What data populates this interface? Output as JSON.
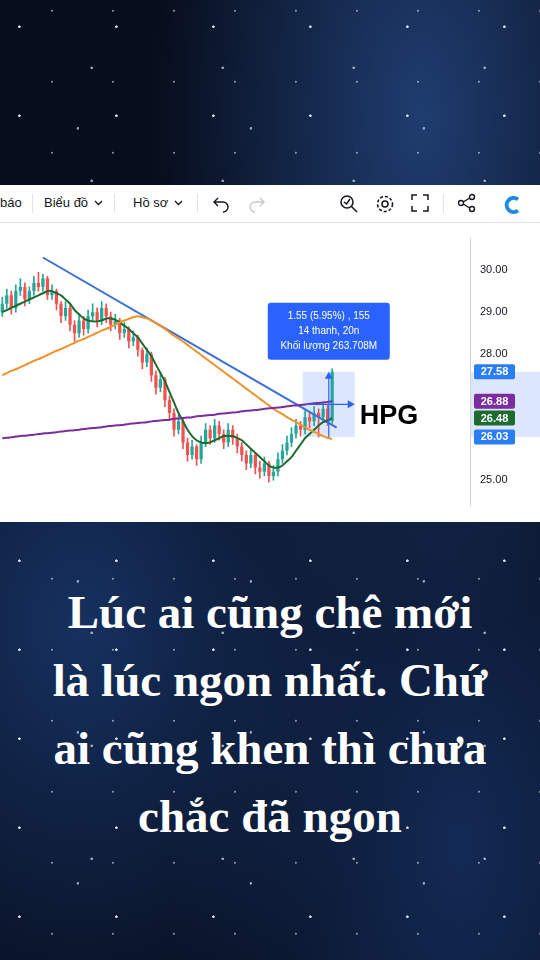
{
  "toolbar": {
    "items": [
      "báo",
      "Biểu đồ",
      "Hồ sơ"
    ]
  },
  "chart_data": {
    "type": "candlestick",
    "categories": [
      null,
      null,
      null,
      null,
      null,
      null,
      null,
      null,
      null,
      null,
      null,
      null,
      null,
      null,
      null,
      null,
      null,
      null,
      null,
      null,
      null,
      null,
      null,
      null,
      null,
      null,
      null,
      null,
      null,
      null,
      null,
      null,
      null,
      null,
      null,
      null,
      null,
      null,
      null,
      null,
      null,
      null,
      null,
      null,
      null,
      null,
      null,
      null,
      null,
      null,
      null,
      null,
      null,
      null,
      null,
      null,
      null,
      null,
      null,
      null,
      null,
      null,
      null,
      null,
      null,
      null,
      null,
      null,
      null,
      null,
      null,
      null,
      null,
      null,
      null,
      null,
      null,
      null,
      null,
      null,
      null,
      null,
      null,
      null,
      null,
      null,
      null,
      null,
      null,
      null,
      null,
      null,
      null,
      null,
      null,
      null,
      null,
      null,
      null,
      null,
      null,
      null,
      null,
      null
    ],
    "open": [
      29,
      29.2,
      29.4,
      29.1,
      29.5,
      29.6,
      29.3,
      29.5,
      29.7,
      29.6,
      29.8,
      29.4,
      29.5,
      29.2,
      28.9,
      29.1,
      28.7,
      28.5,
      28.8,
      28.6,
      28.9,
      29.0,
      28.8,
      29.1,
      28.9,
      28.7,
      28.8,
      28.5,
      28.6,
      28.3,
      28.4,
      28.1,
      27.8,
      28.0,
      27.5,
      27.2,
      27.4,
      26.9,
      26.6,
      26.2,
      26.4,
      25.9,
      25.6,
      25.8,
      25.5,
      25.9,
      26.2,
      26.0,
      26.3,
      26.1,
      25.9,
      26.2,
      26.0,
      25.8,
      25.6,
      25.4,
      25.6,
      25.3,
      25.2,
      25.4,
      25.1,
      25.2,
      25.5,
      25.7,
      25.9,
      26.1,
      26.3,
      26.2,
      26.5,
      26.4,
      26.6,
      26.5,
      26.7,
      26.4,
      null,
      null,
      null,
      null,
      null,
      null,
      null,
      null,
      null,
      null,
      null,
      null,
      null,
      null,
      null,
      null,
      null,
      null,
      null,
      null,
      null,
      null,
      null,
      null,
      null,
      null,
      null,
      null,
      null,
      null
    ],
    "high": [
      29.35,
      29.55,
      29.5,
      29.65,
      29.8,
      29.7,
      29.6,
      29.85,
      29.95,
      29.9,
      29.85,
      29.65,
      29.55,
      29.25,
      29.25,
      29.15,
      28.8,
      28.95,
      28.9,
      29.05,
      29.2,
      29.1,
      29.25,
      29.2,
      29.0,
      28.95,
      28.85,
      28.75,
      28.65,
      28.55,
      28.45,
      28.15,
      28.15,
      28.05,
      27.6,
      27.55,
      27.45,
      27.0,
      26.7,
      26.55,
      26.45,
      26.0,
      25.95,
      25.85,
      26.05,
      26.35,
      26.3,
      26.45,
      26.4,
      26.2,
      26.35,
      26.3,
      26.1,
      25.9,
      25.7,
      25.75,
      25.65,
      25.45,
      25.55,
      25.45,
      25.35,
      25.65,
      25.85,
      26.05,
      26.25,
      26.45,
      26.4,
      26.65,
      26.6,
      26.75,
      26.7,
      26.85,
      26.8,
      27.65,
      null,
      null,
      null,
      null,
      null,
      null,
      null,
      null,
      null,
      null,
      null,
      null,
      null,
      null,
      null,
      null,
      null,
      null,
      null,
      null,
      null,
      null,
      null,
      null,
      null,
      null,
      null,
      null,
      null,
      null
    ],
    "low": [
      28.9,
      29.1,
      28.95,
      29.0,
      29.4,
      29.15,
      29.2,
      29.4,
      29.5,
      29.5,
      29.3,
      29.3,
      29.05,
      28.75,
      28.8,
      28.55,
      28.3,
      28.4,
      28.45,
      28.5,
      28.8,
      28.65,
      28.7,
      28.75,
      28.55,
      28.6,
      28.35,
      28.4,
      28.15,
      28.2,
      27.95,
      27.65,
      27.7,
      27.35,
      27.05,
      27.1,
      26.75,
      26.45,
      26.05,
      26.1,
      25.75,
      25.45,
      25.5,
      25.35,
      25.4,
      25.8,
      25.85,
      25.9,
      25.95,
      25.75,
      25.8,
      25.85,
      25.65,
      25.45,
      25.25,
      25.3,
      25.15,
      25.05,
      25.1,
      24.95,
      25.0,
      25.1,
      25.4,
      25.6,
      25.8,
      26.0,
      26.05,
      26.1,
      26.25,
      26.3,
      26.03,
      26.4,
      26.3,
      26.35,
      null,
      null,
      null,
      null,
      null,
      null,
      null,
      null,
      null,
      null,
      null,
      null,
      null,
      null,
      null,
      null,
      null,
      null,
      null,
      null,
      null,
      null,
      null,
      null,
      null,
      null,
      null,
      null,
      null,
      null
    ],
    "close": [
      29.2,
      29.4,
      29.1,
      29.5,
      29.6,
      29.3,
      29.5,
      29.7,
      29.6,
      29.8,
      29.4,
      29.5,
      29.2,
      28.9,
      29.1,
      28.7,
      28.5,
      28.8,
      28.6,
      28.9,
      29.0,
      28.8,
      29.1,
      28.9,
      28.7,
      28.8,
      28.5,
      28.6,
      28.3,
      28.4,
      28.1,
      27.8,
      28.0,
      27.5,
      27.2,
      27.4,
      26.9,
      26.6,
      26.2,
      26.4,
      25.9,
      25.6,
      25.8,
      25.5,
      25.9,
      26.2,
      26.0,
      26.3,
      26.1,
      25.9,
      26.2,
      26.0,
      25.8,
      25.6,
      25.4,
      25.6,
      25.3,
      25.2,
      25.4,
      25.1,
      25.2,
      25.5,
      25.7,
      25.9,
      26.1,
      26.3,
      26.2,
      26.5,
      26.4,
      26.6,
      26.5,
      26.7,
      26.4,
      27.58,
      null,
      null,
      null,
      null,
      null,
      null,
      null,
      null,
      null,
      null,
      null,
      null,
      null,
      null,
      null,
      null,
      null,
      null,
      null,
      null,
      null,
      null,
      null,
      null,
      null,
      null,
      null,
      null,
      null,
      null
    ],
    "series": [
      {
        "type": "line",
        "color": "#7b2c9e",
        "values": [
          26.0,
          26.01,
          26.02,
          26.04,
          26.05,
          26.06,
          26.07,
          26.08,
          26.1,
          26.11,
          26.12,
          26.13,
          26.14,
          26.16,
          26.17,
          26.18,
          26.19,
          26.2,
          26.22,
          26.23,
          26.24,
          26.25,
          26.26,
          26.28,
          26.29,
          26.3,
          26.31,
          26.32,
          26.34,
          26.35,
          26.36,
          26.37,
          26.38,
          26.4,
          26.41,
          26.42,
          26.43,
          26.44,
          26.46,
          26.47,
          26.48,
          26.49,
          26.5,
          26.52,
          26.53,
          26.54,
          26.55,
          26.56,
          26.58,
          26.59,
          26.6,
          26.61,
          26.62,
          26.64,
          26.65,
          26.66,
          26.67,
          26.68,
          26.7,
          26.71,
          26.72,
          26.73,
          26.74,
          26.76,
          26.77,
          26.78,
          26.79,
          26.8,
          26.82,
          26.83,
          26.84,
          26.85,
          26.86,
          26.88,
          null,
          null,
          null,
          null,
          null,
          null,
          null,
          null,
          null,
          null,
          null,
          null,
          null,
          null,
          null,
          null,
          null,
          null,
          null,
          null,
          null,
          null,
          null,
          null,
          null,
          null,
          null,
          null,
          null,
          null
        ]
      },
      {
        "type": "line",
        "color": "#f0922b",
        "values": [
          27.5,
          27.55,
          27.6,
          27.64,
          27.69,
          27.74,
          27.79,
          27.84,
          27.88,
          27.93,
          27.98,
          28.03,
          28.08,
          28.12,
          28.17,
          28.22,
          28.27,
          28.32,
          28.36,
          28.41,
          28.46,
          28.51,
          28.56,
          28.6,
          28.65,
          28.7,
          28.75,
          28.8,
          28.84,
          28.88,
          28.9,
          28.88,
          28.85,
          28.8,
          28.74,
          28.67,
          28.6,
          28.52,
          28.44,
          28.37,
          28.3,
          28.22,
          28.14,
          28.06,
          27.98,
          27.9,
          27.82,
          27.74,
          27.66,
          27.58,
          27.5,
          27.42,
          27.34,
          27.26,
          27.18,
          27.1,
          27.02,
          26.94,
          26.86,
          26.78,
          26.7,
          26.63,
          26.57,
          26.5,
          26.44,
          26.38,
          26.32,
          26.26,
          26.2,
          26.15,
          26.1,
          26.05,
          26.01,
          25.98,
          null,
          null,
          null,
          null,
          null,
          null,
          null,
          null,
          null,
          null,
          null,
          null,
          null,
          null,
          null,
          null,
          null,
          null,
          null,
          null,
          null,
          null,
          null,
          null,
          null,
          null,
          null,
          null,
          null,
          null
        ]
      },
      {
        "type": "line",
        "color": "#1e6b2e",
        "values": [
          29.0,
          29.05,
          29.1,
          29.15,
          29.2,
          29.25,
          29.3,
          29.35,
          29.4,
          29.45,
          29.5,
          29.5,
          29.45,
          29.4,
          29.3,
          29.2,
          29.05,
          28.95,
          28.85,
          28.8,
          28.78,
          28.78,
          28.8,
          28.85,
          28.85,
          28.82,
          28.75,
          28.68,
          28.6,
          28.5,
          28.4,
          28.25,
          28.1,
          27.95,
          27.75,
          27.55,
          27.35,
          27.1,
          26.85,
          26.6,
          26.4,
          26.2,
          26.05,
          25.95,
          25.9,
          25.88,
          25.9,
          25.95,
          26.0,
          26.05,
          26.05,
          26.05,
          26.0,
          25.95,
          25.85,
          25.75,
          25.65,
          25.55,
          25.45,
          25.35,
          25.3,
          25.3,
          25.35,
          25.45,
          25.55,
          25.7,
          25.85,
          26.0,
          26.1,
          26.2,
          26.3,
          26.38,
          26.42,
          26.48,
          null,
          null,
          null,
          null,
          null,
          null,
          null,
          null,
          null,
          null,
          null,
          null,
          null,
          null,
          null,
          null,
          null,
          null,
          null,
          null,
          null,
          null,
          null,
          null,
          null,
          null,
          null,
          null,
          null,
          null
        ]
      },
      {
        "type": "line",
        "color": "#3b6fd6",
        "values": [
          null,
          null,
          null,
          null,
          null,
          null,
          null,
          null,
          null,
          30.3,
          null,
          null,
          null,
          null,
          null,
          null,
          null,
          null,
          null,
          null,
          null,
          null,
          null,
          null,
          null,
          null,
          null,
          null,
          null,
          null,
          null,
          null,
          null,
          null,
          null,
          null,
          null,
          null,
          null,
          null,
          null,
          null,
          null,
          null,
          null,
          null,
          null,
          null,
          null,
          null,
          null,
          null,
          null,
          null,
          null,
          null,
          null,
          null,
          null,
          null,
          null,
          null,
          null,
          null,
          null,
          null,
          null,
          null,
          null,
          null,
          null,
          null,
          null,
          null,
          26.25,
          null,
          null,
          null,
          null,
          null,
          null,
          null,
          null,
          null,
          null,
          null,
          null,
          null,
          null,
          null,
          null,
          null,
          null,
          null,
          null,
          null,
          null,
          null,
          null,
          null,
          null,
          null,
          null,
          null
        ]
      }
    ],
    "ylim": [
      24.4,
      30.75
    ],
    "yticks": [
      {
        "value": 25,
        "label": "25.00"
      },
      {
        "value": 28,
        "label": "28.00"
      },
      {
        "value": 29,
        "label": "29.00"
      },
      {
        "value": 30,
        "label": "30.00"
      }
    ],
    "grid": false,
    "tick_labels": "y",
    "price_labels": [
      {
        "value": 27.58,
        "label": "27.58",
        "color": "#2a7ef5"
      },
      {
        "value": 26.88,
        "label": "26.88",
        "color": "#7b2c9e"
      },
      {
        "value": 26.48,
        "label": "26.48",
        "color": "#1e6b2e"
      },
      {
        "value": 26.03,
        "label": "26.03",
        "color": "#2a7ef5"
      }
    ],
    "measure": {
      "from": 26.03,
      "to": 27.58,
      "text": [
        "1.55 (5.95%) , 155",
        "14 thanh, 20n",
        "Khối lượng 263.708M"
      ]
    },
    "annotation": "HPG"
  },
  "caption": [
    "Lúc ai cũng chê mới",
    "là lúc ngon nhất. Chứ",
    "ai cũng khen thì chưa",
    "chắc đã ngon"
  ]
}
